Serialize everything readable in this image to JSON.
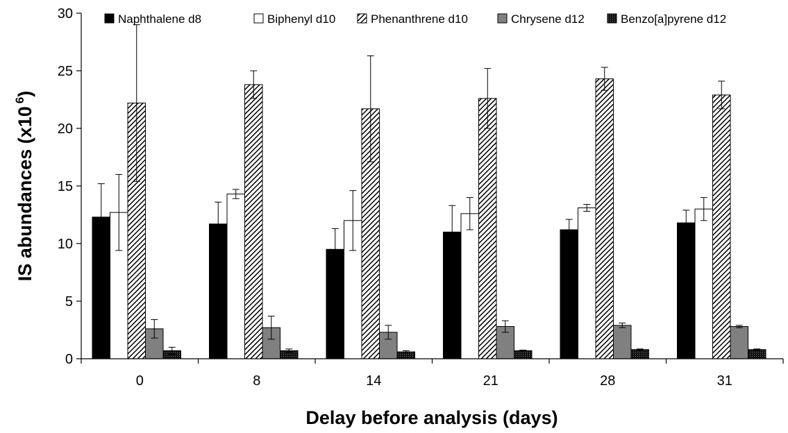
{
  "chart_data": {
    "type": "bar",
    "title": "",
    "xlabel": "Delay before analysis (days)",
    "ylabel_main": "IS abundances (x10",
    "ylabel_exp": "6",
    "ylabel_close": ")",
    "ylim": [
      0,
      30
    ],
    "yticks": [
      "0",
      "5",
      "10",
      "15",
      "20",
      "25",
      "30"
    ],
    "categories": [
      "0",
      "8",
      "14",
      "21",
      "28",
      "31"
    ],
    "legend_position": "top",
    "series": [
      {
        "name": "Naphthalene d8",
        "fill": "solid-black",
        "values": [
          12.3,
          11.7,
          9.5,
          11.0,
          11.2,
          11.8
        ],
        "errors": [
          2.9,
          1.9,
          1.8,
          2.3,
          0.9,
          1.1
        ]
      },
      {
        "name": "Biphenyl d10",
        "fill": "white",
        "values": [
          12.7,
          14.3,
          12.0,
          12.6,
          13.1,
          13.0
        ],
        "errors": [
          3.3,
          0.4,
          2.6,
          1.4,
          0.3,
          1.0
        ]
      },
      {
        "name": "Phenanthrene d10",
        "fill": "diagonal-hatch",
        "values": [
          22.2,
          23.8,
          21.7,
          22.6,
          24.3,
          22.9
        ],
        "errors": [
          6.8,
          1.2,
          4.6,
          2.6,
          1.0,
          1.2
        ]
      },
      {
        "name": "Chrysene d12",
        "fill": "grey",
        "values": [
          2.6,
          2.7,
          2.3,
          2.8,
          2.9,
          2.8
        ],
        "errors": [
          0.8,
          1.0,
          0.6,
          0.5,
          0.2,
          0.1
        ]
      },
      {
        "name": "Benzo[a]pyrene d12",
        "fill": "dark-pattern",
        "values": [
          0.7,
          0.7,
          0.6,
          0.7,
          0.8,
          0.8
        ],
        "errors": [
          0.3,
          0.15,
          0.1,
          0.05,
          0.05,
          0.05
        ]
      }
    ]
  }
}
